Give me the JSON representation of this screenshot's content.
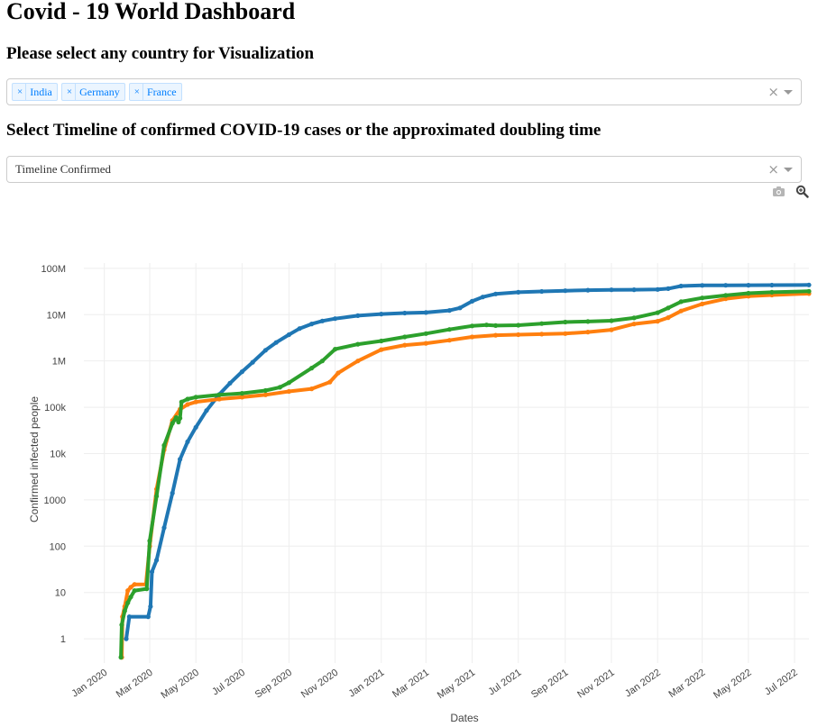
{
  "page": {
    "title": "Covid - 19 World Dashboard",
    "country_heading": "Please select any country for Visualization",
    "timeline_heading": "Select Timeline of confirmed COVID-19 cases or the approximated doubling time"
  },
  "country_select": {
    "tags": [
      {
        "label": "India",
        "remove": "×"
      },
      {
        "label": "Germany",
        "remove": "×"
      },
      {
        "label": "France",
        "remove": "×"
      }
    ],
    "clear": "×"
  },
  "timeline_select": {
    "value": "Timeline Confirmed",
    "clear": "×"
  },
  "modebar": {
    "icons": [
      "camera-icon",
      "zoom-icon"
    ]
  },
  "chart_data": {
    "type": "line",
    "xlabel": "Dates",
    "ylabel": "Confirmed infected people",
    "yscale": "log",
    "ylim": [
      0.3,
      130000000
    ],
    "xlim": [
      "2019-12-05",
      "2022-07-20"
    ],
    "yticks": [
      {
        "value": 100000000,
        "label": "100M"
      },
      {
        "value": 10000000,
        "label": "10M"
      },
      {
        "value": 1000000,
        "label": "1M"
      },
      {
        "value": 100000,
        "label": "100k"
      },
      {
        "value": 10000,
        "label": "10k"
      },
      {
        "value": 1000,
        "label": "1000"
      },
      {
        "value": 100,
        "label": "100"
      },
      {
        "value": 10,
        "label": "10"
      },
      {
        "value": 1,
        "label": "1"
      }
    ],
    "xticks": [
      {
        "date": "2020-01-01",
        "label": "Jan 2020"
      },
      {
        "date": "2020-03-01",
        "label": "Mar 2020"
      },
      {
        "date": "2020-05-01",
        "label": "May 2020"
      },
      {
        "date": "2020-07-01",
        "label": "Jul 2020"
      },
      {
        "date": "2020-09-01",
        "label": "Sep 2020"
      },
      {
        "date": "2020-11-01",
        "label": "Nov 2020"
      },
      {
        "date": "2021-01-01",
        "label": "Jan 2021"
      },
      {
        "date": "2021-03-01",
        "label": "Mar 2021"
      },
      {
        "date": "2021-05-01",
        "label": "May 2021"
      },
      {
        "date": "2021-07-01",
        "label": "Jul 2021"
      },
      {
        "date": "2021-09-01",
        "label": "Sep 2021"
      },
      {
        "date": "2021-11-01",
        "label": "Nov 2021"
      },
      {
        "date": "2022-01-01",
        "label": "Jan 2022"
      },
      {
        "date": "2022-03-01",
        "label": "Mar 2022"
      },
      {
        "date": "2022-05-01",
        "label": "May 2022"
      },
      {
        "date": "2022-07-01",
        "label": "Jul 2022"
      }
    ],
    "grid": true,
    "legend": false,
    "series": [
      {
        "color": "#1f77b4",
        "points": [
          [
            "2020-01-30",
            1
          ],
          [
            "2020-02-03",
            3
          ],
          [
            "2020-02-28",
            3
          ],
          [
            "2020-03-02",
            5
          ],
          [
            "2020-03-04",
            28
          ],
          [
            "2020-03-10",
            50
          ],
          [
            "2020-03-20",
            250
          ],
          [
            "2020-03-31",
            1400
          ],
          [
            "2020-04-10",
            7500
          ],
          [
            "2020-04-20",
            18000
          ],
          [
            "2020-05-01",
            37000
          ],
          [
            "2020-05-15",
            85000
          ],
          [
            "2020-06-01",
            190000
          ],
          [
            "2020-06-15",
            330000
          ],
          [
            "2020-07-01",
            585000
          ],
          [
            "2020-07-15",
            937000
          ],
          [
            "2020-08-01",
            1700000
          ],
          [
            "2020-08-15",
            2500000
          ],
          [
            "2020-09-01",
            3700000
          ],
          [
            "2020-09-15",
            5000000
          ],
          [
            "2020-10-01",
            6300000
          ],
          [
            "2020-10-15",
            7300000
          ],
          [
            "2020-11-01",
            8200000
          ],
          [
            "2020-12-01",
            9500000
          ],
          [
            "2021-01-01",
            10300000
          ],
          [
            "2021-02-01",
            10800000
          ],
          [
            "2021-03-01",
            11100000
          ],
          [
            "2021-04-01",
            12300000
          ],
          [
            "2021-04-15",
            14000000
          ],
          [
            "2021-05-01",
            19500000
          ],
          [
            "2021-05-15",
            24000000
          ],
          [
            "2021-06-01",
            28000000
          ],
          [
            "2021-07-01",
            30400000
          ],
          [
            "2021-08-01",
            31700000
          ],
          [
            "2021-09-01",
            32800000
          ],
          [
            "2021-10-01",
            33800000
          ],
          [
            "2021-11-01",
            34300000
          ],
          [
            "2021-12-01",
            34600000
          ],
          [
            "2022-01-01",
            35000000
          ],
          [
            "2022-01-15",
            36500000
          ],
          [
            "2022-02-01",
            41500000
          ],
          [
            "2022-03-01",
            42900000
          ],
          [
            "2022-04-01",
            43000000
          ],
          [
            "2022-05-01",
            43100000
          ],
          [
            "2022-06-01",
            43300000
          ],
          [
            "2022-07-20",
            43800000
          ]
        ]
      },
      {
        "color": "#ff7f0e",
        "points": [
          [
            "2020-01-24",
            0.4
          ],
          [
            "2020-01-25",
            3
          ],
          [
            "2020-01-28",
            5
          ],
          [
            "2020-02-01",
            11
          ],
          [
            "2020-02-05",
            13
          ],
          [
            "2020-02-10",
            15
          ],
          [
            "2020-02-25",
            15
          ],
          [
            "2020-03-01",
            100
          ],
          [
            "2020-03-10",
            1700
          ],
          [
            "2020-03-20",
            12000
          ],
          [
            "2020-03-31",
            52000
          ],
          [
            "2020-04-10",
            90000
          ],
          [
            "2020-04-20",
            115000
          ],
          [
            "2020-05-01",
            130000
          ],
          [
            "2020-06-01",
            150000
          ],
          [
            "2020-07-01",
            165000
          ],
          [
            "2020-08-01",
            185000
          ],
          [
            "2020-09-01",
            220000
          ],
          [
            "2020-10-01",
            250000
          ],
          [
            "2020-10-25",
            350000
          ],
          [
            "2020-11-05",
            550000
          ],
          [
            "2020-12-01",
            1000000
          ],
          [
            "2021-01-01",
            1760000
          ],
          [
            "2021-02-01",
            2200000
          ],
          [
            "2021-03-01",
            2400000
          ],
          [
            "2021-04-01",
            2800000
          ],
          [
            "2021-05-01",
            3300000
          ],
          [
            "2021-06-01",
            3600000
          ],
          [
            "2021-07-01",
            3700000
          ],
          [
            "2021-08-01",
            3800000
          ],
          [
            "2021-09-01",
            3900000
          ],
          [
            "2021-10-01",
            4200000
          ],
          [
            "2021-11-01",
            4700000
          ],
          [
            "2021-12-01",
            6300000
          ],
          [
            "2022-01-01",
            7200000
          ],
          [
            "2022-01-15",
            8600000
          ],
          [
            "2022-02-01",
            12000000
          ],
          [
            "2022-03-01",
            17000000
          ],
          [
            "2022-04-01",
            22000000
          ],
          [
            "2022-05-01",
            25000000
          ],
          [
            "2022-06-01",
            26500000
          ],
          [
            "2022-07-20",
            28500000
          ]
        ]
      },
      {
        "color": "#2ca02c",
        "points": [
          [
            "2020-01-23",
            0.4
          ],
          [
            "2020-01-24",
            2
          ],
          [
            "2020-01-28",
            4
          ],
          [
            "2020-02-01",
            6
          ],
          [
            "2020-02-05",
            8
          ],
          [
            "2020-02-10",
            11
          ],
          [
            "2020-02-26",
            12
          ],
          [
            "2020-03-01",
            130
          ],
          [
            "2020-03-10",
            1200
          ],
          [
            "2020-03-20",
            15000
          ],
          [
            "2020-03-31",
            45000
          ],
          [
            "2020-04-05",
            60000
          ],
          [
            "2020-04-08",
            48000
          ],
          [
            "2020-04-10",
            58000
          ],
          [
            "2020-04-12",
            130000
          ],
          [
            "2020-04-20",
            150000
          ],
          [
            "2020-05-01",
            165000
          ],
          [
            "2020-06-01",
            185000
          ],
          [
            "2020-07-01",
            200000
          ],
          [
            "2020-08-01",
            230000
          ],
          [
            "2020-08-20",
            270000
          ],
          [
            "2020-09-01",
            340000
          ],
          [
            "2020-10-01",
            700000
          ],
          [
            "2020-10-15",
            1000000
          ],
          [
            "2020-11-01",
            1800000
          ],
          [
            "2020-12-01",
            2300000
          ],
          [
            "2021-01-01",
            2700000
          ],
          [
            "2021-02-01",
            3300000
          ],
          [
            "2021-03-01",
            3900000
          ],
          [
            "2021-04-01",
            4800000
          ],
          [
            "2021-05-01",
            5700000
          ],
          [
            "2021-05-20",
            6000000
          ],
          [
            "2021-06-01",
            5800000
          ],
          [
            "2021-07-01",
            5900000
          ],
          [
            "2021-08-01",
            6400000
          ],
          [
            "2021-09-01",
            6900000
          ],
          [
            "2021-10-01",
            7100000
          ],
          [
            "2021-11-01",
            7400000
          ],
          [
            "2021-12-01",
            8500000
          ],
          [
            "2022-01-01",
            11000000
          ],
          [
            "2022-01-15",
            14000000
          ],
          [
            "2022-02-01",
            19000000
          ],
          [
            "2022-03-01",
            23000000
          ],
          [
            "2022-04-01",
            26000000
          ],
          [
            "2022-05-01",
            29000000
          ],
          [
            "2022-06-01",
            30500000
          ],
          [
            "2022-07-20",
            32000000
          ]
        ]
      }
    ]
  }
}
